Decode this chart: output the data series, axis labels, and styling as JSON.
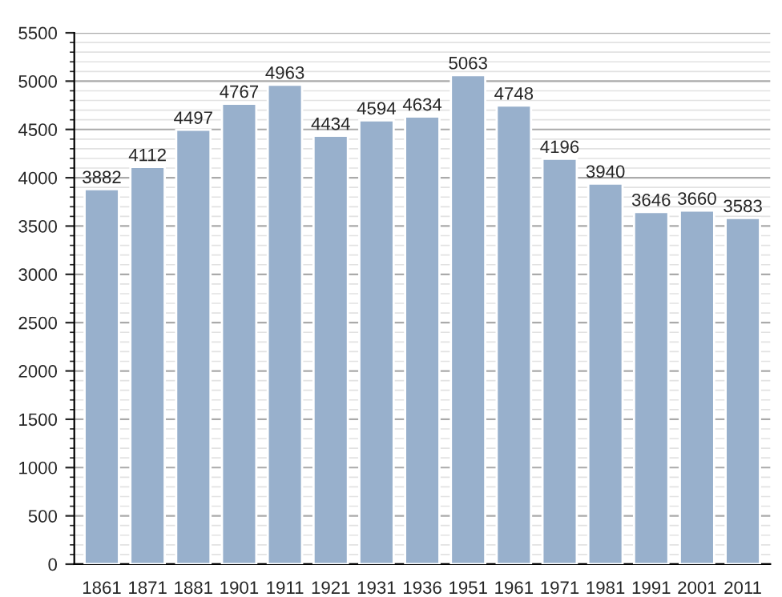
{
  "chart_data": {
    "type": "bar",
    "categories": [
      "1861",
      "1871",
      "1881",
      "1901",
      "1911",
      "1921",
      "1931",
      "1936",
      "1951",
      "1961",
      "1971",
      "1981",
      "1991",
      "2001",
      "2011"
    ],
    "values": [
      3882,
      4112,
      4497,
      4767,
      4963,
      4434,
      4594,
      4634,
      5063,
      4748,
      4196,
      3940,
      3646,
      3660,
      3583
    ],
    "color": "#98b0cc",
    "ylim": [
      0,
      5500
    ],
    "yticks": [
      0,
      500,
      1000,
      1500,
      2000,
      2500,
      3000,
      3500,
      4000,
      4500,
      5000,
      5500
    ],
    "grid": "y",
    "data_labels": true
  }
}
